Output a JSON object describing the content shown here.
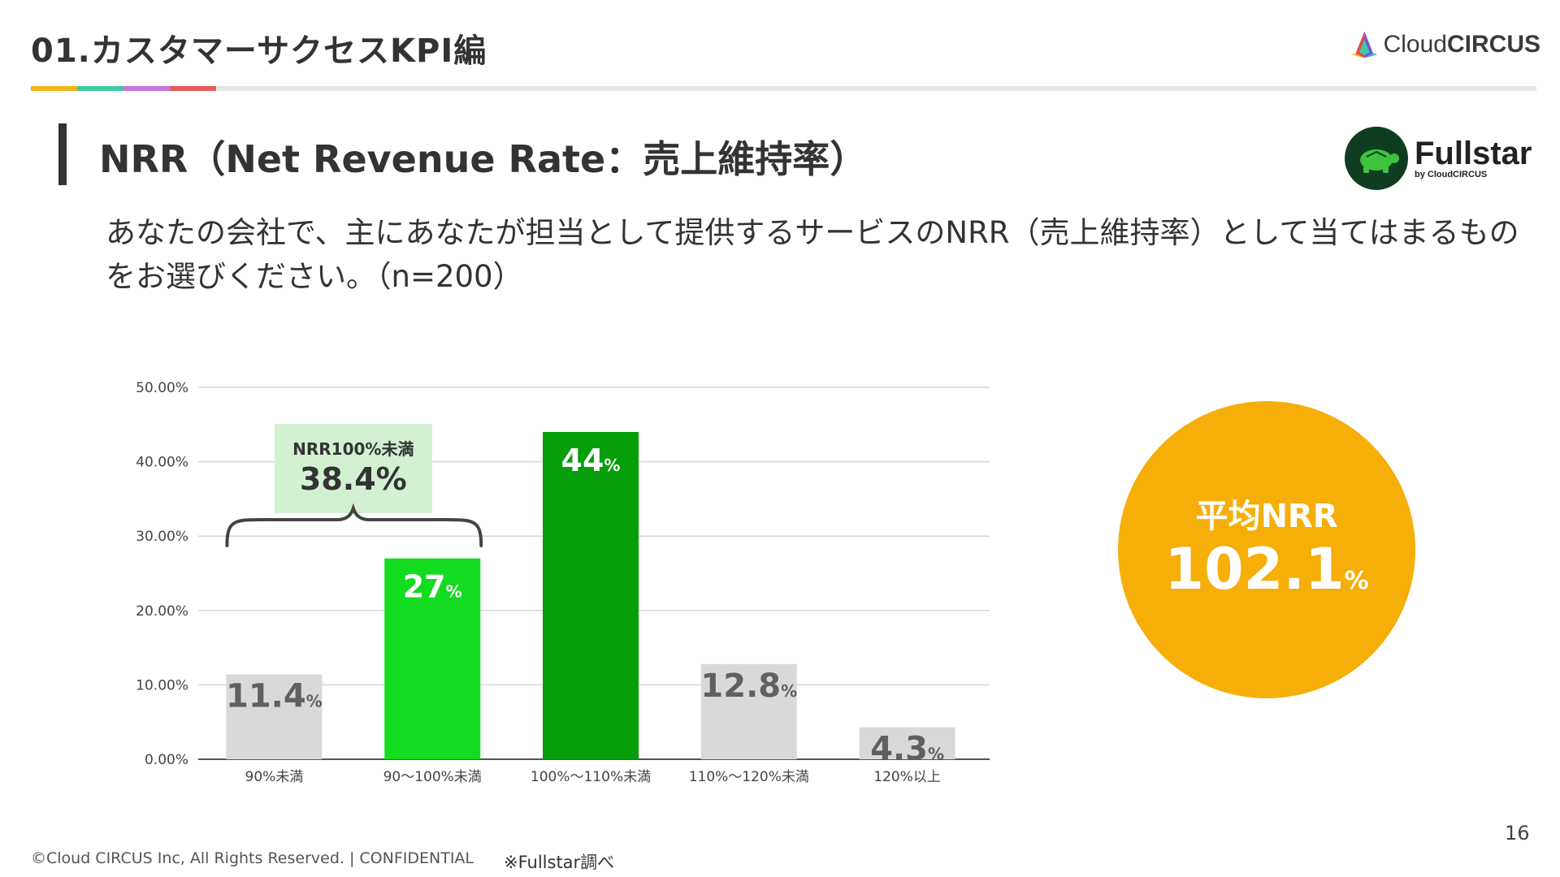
{
  "header": {
    "section_title": "01.カスタマーサクセスKPI編",
    "brand": {
      "light": "Cloud",
      "bold": "CIRCUS"
    },
    "colors": [
      "#f6b21a",
      "#3dcca2",
      "#c874e0",
      "#e55a5a"
    ]
  },
  "slide": {
    "heading": "NRR（Net Revenue Rate：売上維持率）",
    "fullstar_name": "Fullstar",
    "fullstar_by": "by CloudCIRCUS",
    "question": "あなたの会社で、主にあなたが担当として提供するサービスのNRR（売上維持率）として当てはまるものをお選びください。（n=200）"
  },
  "chart_data": {
    "type": "bar",
    "categories": [
      "90%未満",
      "90～100%未満",
      "100%～110%未満",
      "110%～120%未満",
      "120%以上"
    ],
    "values": [
      11.4,
      27,
      44,
      12.8,
      4.3
    ],
    "value_labels": [
      "11.4",
      "27",
      "44",
      "12.8",
      "4.3"
    ],
    "unit": "%",
    "colors": [
      "#d9d9d9",
      "#13db20",
      "#069e0b",
      "#d9d9d9",
      "#d9d9d9"
    ],
    "label_colors": [
      "#606060",
      "#ffffff",
      "#ffffff",
      "#606060",
      "#606060"
    ],
    "yticks": [
      "0.00%",
      "10.00%",
      "20.00%",
      "30.00%",
      "40.00%",
      "50.00%"
    ],
    "ylim": [
      0,
      50
    ],
    "annotation": {
      "title": "NRR100%未満",
      "value": "38.4%",
      "bg": "#d3f0d3",
      "spans_categories": [
        0,
        1
      ]
    }
  },
  "average": {
    "label": "平均NRR",
    "value": "102.1",
    "unit": "%",
    "color": "#f6ae09"
  },
  "footer": {
    "copyright": "©Cloud CIRCUS Inc, All Rights Reserved. | CONFIDENTIAL",
    "source": "※Fullstar調べ",
    "page": "16"
  }
}
